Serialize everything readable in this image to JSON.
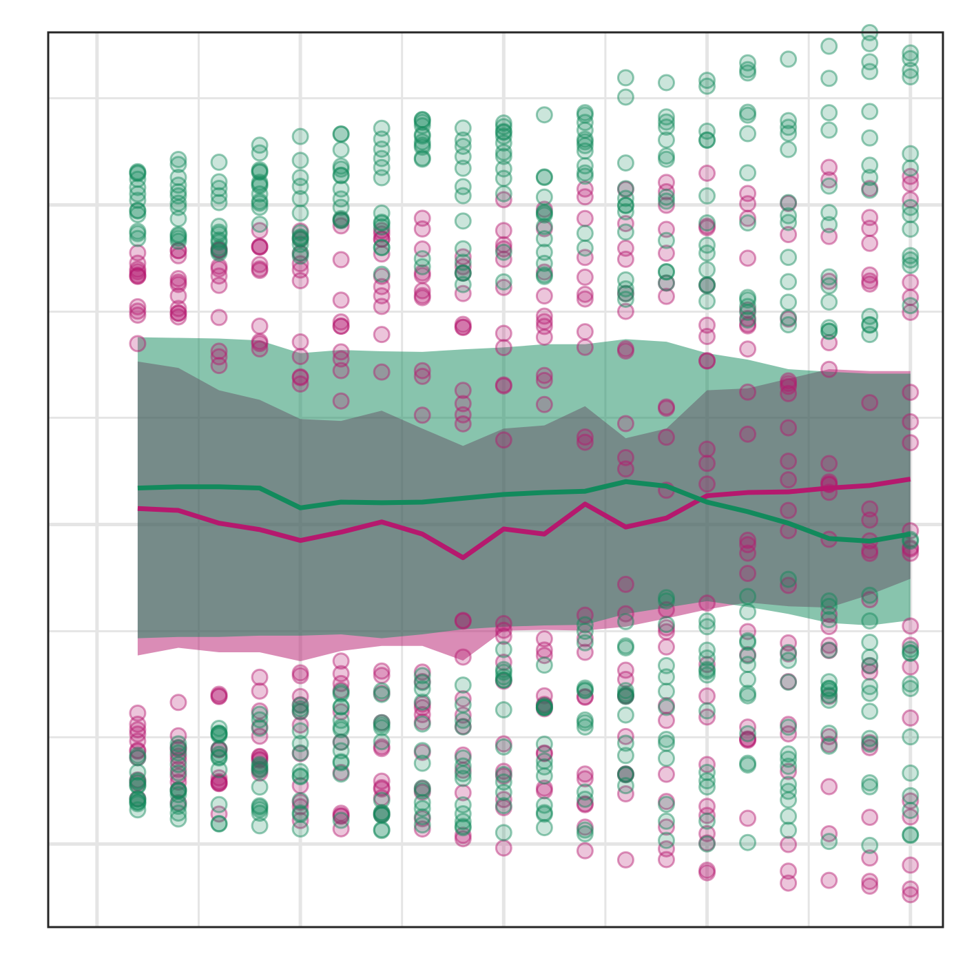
{
  "chart_data": {
    "type": "scatter",
    "title": "",
    "xlabel": "",
    "ylabel": "",
    "xlim": [
      -1.2,
      20.8
    ],
    "ylim": [
      -6.3,
      7.7
    ],
    "grid": true,
    "legend": "none",
    "x_major_ticks": [
      0,
      5,
      10,
      15,
      20
    ],
    "x_minor_ticks": [
      2.5,
      7.5,
      12.5,
      17.5
    ],
    "y_major_ticks": [
      -5,
      0,
      5
    ],
    "y_minor_ticks": [
      -3.33,
      -1.67,
      1.67,
      3.33,
      6.67
    ],
    "colors": {
      "magenta": "#b5196e",
      "green": "#128a5c",
      "green_band": "#5fb591",
      "overlap": "#6f8a83",
      "grid": "#e5e5e5",
      "frame": "#262626"
    },
    "x": [
      1,
      2,
      3,
      4,
      5,
      6,
      7,
      8,
      9,
      10,
      11,
      12,
      13,
      14,
      15,
      16,
      17,
      18,
      19,
      20
    ],
    "series": [
      {
        "color": "#b5196e",
        "mean": [
          0.25,
          0.22,
          0.02,
          -0.08,
          -0.25,
          -0.12,
          0.04,
          -0.15,
          -0.52,
          -0.07,
          -0.15,
          0.32,
          -0.04,
          0.1,
          0.45,
          0.5,
          0.51,
          0.57,
          0.61,
          0.71
        ],
        "band_low": [
          -2.05,
          -1.93,
          -2.0,
          -2.0,
          -2.14,
          -1.98,
          -1.9,
          -1.9,
          -2.13,
          -1.66,
          -1.65,
          -1.66,
          -1.6,
          -1.47,
          -1.33,
          -1.22,
          -1.28,
          -1.3,
          -1.1,
          -0.85
        ],
        "band_high": [
          2.55,
          2.45,
          2.1,
          1.95,
          1.65,
          1.62,
          1.78,
          1.5,
          1.23,
          1.5,
          1.55,
          1.85,
          1.35,
          1.5,
          2.1,
          2.13,
          2.28,
          2.43,
          2.4,
          2.4
        ]
      },
      {
        "color": "#128a5c",
        "mean": [
          0.57,
          0.59,
          0.59,
          0.57,
          0.26,
          0.35,
          0.34,
          0.35,
          0.41,
          0.47,
          0.5,
          0.52,
          0.67,
          0.6,
          0.35,
          0.2,
          0.02,
          -0.22,
          -0.26,
          -0.15
        ],
        "band_low": [
          -1.78,
          -1.76,
          -1.76,
          -1.74,
          -1.74,
          -1.72,
          -1.78,
          -1.72,
          -1.64,
          -1.6,
          -1.58,
          -1.57,
          -1.4,
          -1.3,
          -1.2,
          -1.29,
          -1.4,
          -1.54,
          -1.58,
          -1.5
        ],
        "band_high": [
          2.93,
          2.92,
          2.91,
          2.88,
          2.68,
          2.73,
          2.71,
          2.7,
          2.74,
          2.77,
          2.82,
          2.82,
          2.9,
          2.86,
          2.68,
          2.58,
          2.43,
          2.39,
          2.36,
          2.36
        ]
      }
    ]
  }
}
